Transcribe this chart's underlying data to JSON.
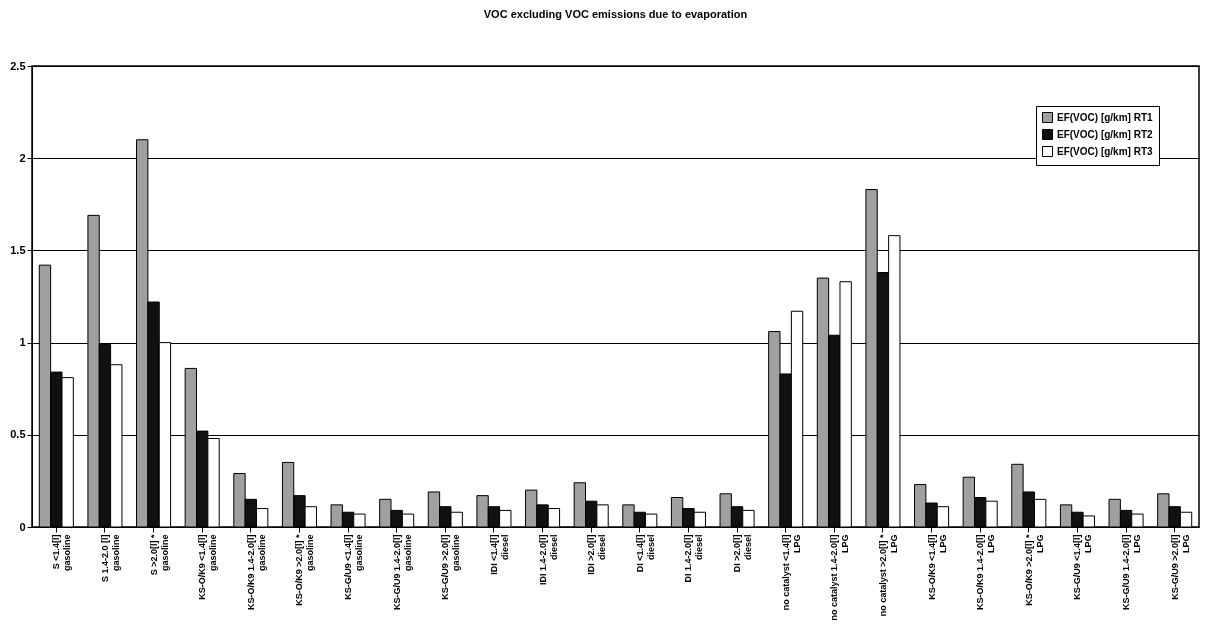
{
  "chart_data": {
    "type": "bar",
    "title": "VOC excluding VOC emissions due to evaporation",
    "categories": [
      "S <1.4[l]\ngasoline",
      "S 1.4-2.0 [l]\ngasoline",
      "S >2.0[l] *\ngasoline",
      "KS-O/K9 <1.4[l]\ngasoline",
      "KS-O/K9 1.4-2.0[l]\ngasoline",
      "KS-O/K9 >2.0[l] *\ngasoline",
      "KS-G/U9 <1.4[l]\ngasoline",
      "KS-G/U9 1.4-2.0[l]\ngasoline",
      "KS-G/U9 >2.0[l]\ngasoline",
      "IDI <1.4[l]\ndiesel",
      "IDI 1.4-2.0[l]\ndiesel",
      "IDI >2.0[l]\ndiesel",
      "DI <1.4[l]\ndiesel",
      "DI 1.4-2.0[l]\ndiesel",
      "DI >2.0[l]\ndiesel",
      "no catalyst <1.4[l]\nLPG",
      "no catalyst 1.4-2.0[l]\nLPG",
      "no catalyst >2.0[l] *\nLPG",
      "KS-O/K9 <1.4[l]\nLPG",
      "KS-O/K9 1.4-2.0[l]\nLPG",
      "KS-O/K9 >2.0[l] *\nLPG",
      "KS-G/U9 <1.4[l]\nLPG",
      "KS-G/U9 1.4-2.0[l]\nLPG",
      "KS-G/U9 >2.0[l]\nLPG"
    ],
    "series": [
      {
        "name": "EF(VOC) [g/km] RT1",
        "color": "#a0a0a0",
        "values": [
          1.42,
          1.69,
          2.1,
          0.86,
          0.29,
          0.35,
          0.12,
          0.15,
          0.19,
          0.17,
          0.2,
          0.24,
          0.12,
          0.16,
          0.18,
          1.06,
          1.35,
          1.83,
          0.23,
          0.27,
          0.34,
          0.12,
          0.15,
          0.18
        ]
      },
      {
        "name": "EF(VOC) [g/km] RT2",
        "color": "#111111",
        "values": [
          0.84,
          0.99,
          1.22,
          0.52,
          0.15,
          0.17,
          0.08,
          0.09,
          0.11,
          0.11,
          0.12,
          0.14,
          0.08,
          0.1,
          0.11,
          0.83,
          1.04,
          1.38,
          0.13,
          0.16,
          0.19,
          0.08,
          0.09,
          0.11
        ]
      },
      {
        "name": "EF(VOC) [g/km] RT3",
        "color": "#ffffff",
        "values": [
          0.81,
          0.88,
          1.0,
          0.48,
          0.1,
          0.11,
          0.07,
          0.07,
          0.08,
          0.09,
          0.1,
          0.12,
          0.07,
          0.08,
          0.09,
          1.17,
          1.33,
          1.58,
          0.11,
          0.14,
          0.15,
          0.06,
          0.07,
          0.08
        ]
      }
    ],
    "ylim": [
      0,
      2.5
    ],
    "yticks": [
      0,
      0.5,
      1,
      1.5,
      2,
      2.5
    ],
    "grid": "y",
    "legend": "top right"
  }
}
